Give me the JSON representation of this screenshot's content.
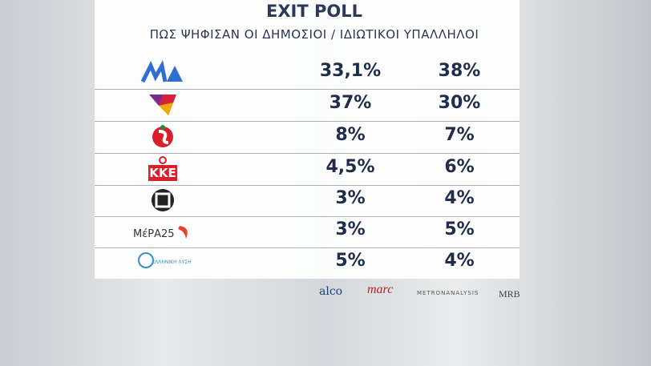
{
  "header": {
    "title": "EXIT POLL",
    "subtitle": "ΠΩΣ ΨΗΦΙΣΑΝ ΟΙ ΔΗΜΟΣΙΟΙ / ΙΔΙΩΤΙΚΟΙ ΥΠΑΛΛΗΛΟΙ"
  },
  "table": {
    "rows": [
      {
        "values": [
          "33,1%",
          "38%"
        ]
      },
      {
        "values": [
          "37%",
          "30%"
        ]
      },
      {
        "values": [
          "8%",
          "7%"
        ]
      },
      {
        "logo_text": "ΚΚΕ",
        "values": [
          "4,5%",
          "6%"
        ]
      },
      {
        "values": [
          "3%",
          "4%"
        ]
      },
      {
        "logo_text": "ΜέΡΑ25",
        "values": [
          "3%",
          "5%"
        ]
      },
      {
        "logo_text": "ΕΛΛΗΝΙΚΗ ΛΥΣΗ",
        "values": [
          "5%",
          "4%"
        ]
      }
    ]
  },
  "sources": [
    "alco",
    "marc",
    "METRONANALYSIS",
    "MRB"
  ]
}
